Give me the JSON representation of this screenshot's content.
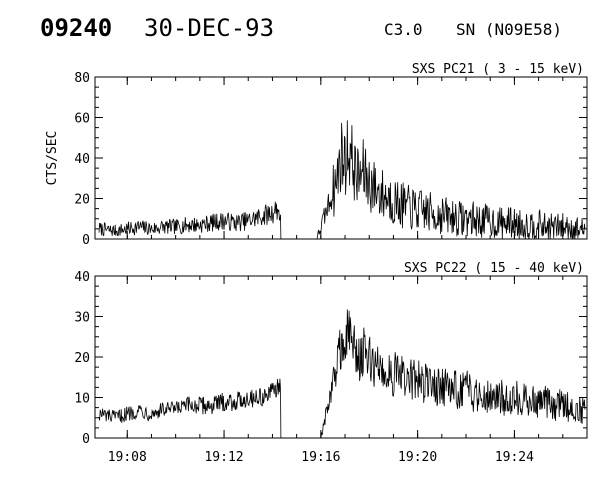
{
  "header": {
    "event_id": "09240",
    "date": "30-DEC-93",
    "goes_class": "C3.0",
    "location": "SN (N09E58)"
  },
  "chart_data": [
    {
      "type": "line",
      "title": "SXS PC21  (  3 - 15 keV)",
      "ylabel": "CTS/SEC",
      "xlabel": "",
      "ylim": [
        0,
        80
      ],
      "yticks": [
        0,
        20,
        40,
        60,
        80
      ],
      "xlim": [
        "19:06:40",
        "19:27:00"
      ],
      "xticks": [
        "19:08",
        "19:12",
        "19:16",
        "19:20",
        "19:24"
      ],
      "grid": false,
      "series": [
        {
          "x": [
            "19:06:50",
            "19:07:30",
            "19:08:00",
            "19:08:30",
            "19:09:00",
            "19:09:30",
            "19:10:00",
            "19:10:30",
            "19:11:00",
            "19:11:30",
            "19:12:00",
            "19:12:30",
            "19:13:00",
            "19:13:30",
            "19:14:00",
            "19:14:10",
            "19:14:20",
            "19:14:21",
            "19:15:50",
            "19:16:40",
            "19:16:50",
            "19:17:00",
            "19:17:10",
            "19:17:20",
            "19:17:30",
            "19:17:45",
            "19:18:00",
            "19:18:15",
            "19:18:30",
            "19:18:45",
            "19:19:00",
            "19:19:15",
            "19:19:30",
            "19:19:45",
            "19:20:00",
            "19:20:15",
            "19:20:30",
            "19:20:45",
            "19:21:00",
            "19:21:15",
            "19:21:30",
            "19:21:45",
            "19:22:00",
            "19:22:15",
            "19:22:30",
            "19:22:45",
            "19:23:00",
            "19:23:15",
            "19:23:30",
            "19:23:45",
            "19:24:00",
            "19:24:15",
            "19:24:30",
            "19:24:45",
            "19:25:00",
            "19:25:15",
            "19:25:30",
            "19:25:45",
            "19:26:00",
            "19:26:15",
            "19:26:30",
            "19:26:45",
            "19:26:55"
          ],
          "y": [
            5,
            4,
            5,
            6,
            5,
            6,
            6,
            7,
            7,
            8,
            9,
            8,
            9,
            11,
            13,
            15,
            12,
            0,
            0,
            29,
            42,
            38,
            45,
            37,
            30,
            33,
            28,
            25,
            22,
            21,
            19,
            17,
            16,
            15,
            14,
            14,
            13,
            12,
            12,
            11,
            11,
            10,
            10,
            10,
            9,
            9,
            9,
            8,
            8,
            8,
            8,
            7,
            7,
            7,
            7,
            6,
            6,
            6,
            6,
            6,
            5,
            5,
            5
          ]
        }
      ]
    },
    {
      "type": "line",
      "title": "SXS PC22  ( 15 - 40 keV)",
      "ylabel": "",
      "xlabel": "",
      "ylim": [
        0,
        40
      ],
      "yticks": [
        0,
        10,
        20,
        30,
        40
      ],
      "xlim": [
        "19:06:40",
        "19:27:00"
      ],
      "xticks": [
        "19:08",
        "19:12",
        "19:16",
        "19:20",
        "19:24"
      ],
      "grid": false,
      "series": [
        {
          "x": [
            "19:06:50",
            "19:07:30",
            "19:08:00",
            "19:08:30",
            "19:09:00",
            "19:09:30",
            "19:10:00",
            "19:10:30",
            "19:11:00",
            "19:11:30",
            "19:12:00",
            "19:12:30",
            "19:13:00",
            "19:13:30",
            "19:14:00",
            "19:14:10",
            "19:14:20",
            "19:14:21",
            "19:16:00",
            "19:16:40",
            "19:16:50",
            "19:17:00",
            "19:17:10",
            "19:17:20",
            "19:17:30",
            "19:17:45",
            "19:18:00",
            "19:18:15",
            "19:18:30",
            "19:18:45",
            "19:19:00",
            "19:19:15",
            "19:19:30",
            "19:19:45",
            "19:20:00",
            "19:20:15",
            "19:20:30",
            "19:20:45",
            "19:21:00",
            "19:21:15",
            "19:21:30",
            "19:21:45",
            "19:22:00",
            "19:22:15",
            "19:22:30",
            "19:22:45",
            "19:23:00",
            "19:23:15",
            "19:23:30",
            "19:23:45",
            "19:24:00",
            "19:24:15",
            "19:24:30",
            "19:24:45",
            "19:25:00",
            "19:25:15",
            "19:25:30",
            "19:25:45",
            "19:26:00",
            "19:26:15",
            "19:26:30",
            "19:26:45",
            "19:26:55"
          ],
          "y": [
            6,
            5,
            6,
            7,
            6,
            7,
            7,
            8,
            8,
            8,
            9,
            9,
            10,
            10,
            11,
            13,
            12,
            0,
            0,
            18,
            24,
            22,
            27,
            23,
            20,
            21,
            19,
            18,
            17,
            16,
            16,
            15,
            15,
            14,
            14,
            14,
            13,
            13,
            13,
            12,
            12,
            12,
            12,
            11,
            11,
            11,
            11,
            10,
            10,
            10,
            10,
            10,
            9,
            9,
            9,
            9,
            8,
            8,
            8,
            8,
            7,
            7,
            7
          ]
        }
      ]
    }
  ]
}
